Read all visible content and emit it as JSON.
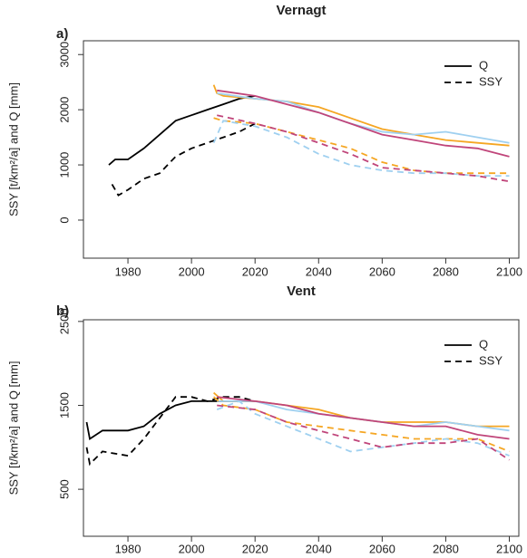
{
  "chart_data": [
    {
      "type": "line",
      "title": "Vernagt",
      "panel_label": "a)",
      "ylabel": "SSY [t/km²/a] and Q [mm]",
      "xlim": [
        1966,
        2103
      ],
      "ylim": [
        -690,
        3250
      ],
      "xticks": [
        1980,
        2000,
        2020,
        2040,
        2060,
        2080,
        2100
      ],
      "yticks": [
        0,
        1000,
        2000,
        3000
      ],
      "legend_position": "top-right",
      "legend": [
        {
          "label": "Q",
          "dash": "solid"
        },
        {
          "label": "SSY",
          "dash": "dashed"
        }
      ],
      "series": [
        {
          "color": "#000000",
          "dash": "solid",
          "x": [
            1974,
            1976,
            1980,
            1985,
            1990,
            1995,
            2000,
            2005,
            2010,
            2015,
            2020
          ],
          "values": [
            1000,
            1100,
            1100,
            1300,
            1550,
            1800,
            1900,
            2000,
            2100,
            2200,
            2250
          ]
        },
        {
          "color": "#000000",
          "dash": "dashed",
          "x": [
            1975,
            1977,
            1980,
            1985,
            1990,
            1995,
            2000,
            2005,
            2010,
            2015,
            2020
          ],
          "values": [
            650,
            450,
            550,
            750,
            850,
            1150,
            1300,
            1400,
            1500,
            1600,
            1750
          ]
        },
        {
          "color": "#f5a623",
          "dash": "solid",
          "x": [
            2007,
            2008,
            2010,
            2020,
            2030,
            2040,
            2050,
            2060,
            2070,
            2080,
            2090,
            2100
          ],
          "values": [
            2450,
            2300,
            2250,
            2200,
            2150,
            2050,
            1850,
            1650,
            1550,
            1450,
            1400,
            1350
          ]
        },
        {
          "color": "#9fd0f0",
          "dash": "solid",
          "x": [
            2008,
            2020,
            2030,
            2040,
            2050,
            2060,
            2070,
            2080,
            2090,
            2100
          ],
          "values": [
            2300,
            2200,
            2150,
            1950,
            1750,
            1600,
            1550,
            1600,
            1500,
            1400
          ]
        },
        {
          "color": "#c0457a",
          "dash": "solid",
          "x": [
            2008,
            2020,
            2030,
            2040,
            2050,
            2060,
            2070,
            2080,
            2090,
            2100
          ],
          "values": [
            2350,
            2250,
            2100,
            1950,
            1750,
            1550,
            1450,
            1350,
            1300,
            1150
          ]
        },
        {
          "color": "#f5a623",
          "dash": "dashed",
          "x": [
            2007,
            2010,
            2020,
            2030,
            2040,
            2050,
            2060,
            2070,
            2080,
            2090,
            2100
          ],
          "values": [
            1850,
            1800,
            1750,
            1600,
            1450,
            1300,
            1050,
            900,
            850,
            850,
            850
          ]
        },
        {
          "color": "#9fd0f0",
          "dash": "dashed",
          "x": [
            2007,
            2010,
            2020,
            2030,
            2040,
            2050,
            2060,
            2070,
            2080,
            2090,
            2100
          ],
          "values": [
            1400,
            1800,
            1700,
            1500,
            1200,
            1000,
            900,
            850,
            850,
            800,
            800
          ]
        },
        {
          "color": "#c0457a",
          "dash": "dashed",
          "x": [
            2008,
            2020,
            2030,
            2040,
            2050,
            2060,
            2070,
            2080,
            2090,
            2100
          ],
          "values": [
            1900,
            1750,
            1600,
            1400,
            1200,
            950,
            900,
            850,
            800,
            700
          ]
        }
      ]
    },
    {
      "type": "line",
      "title": "Vent",
      "panel_label": "b)",
      "ylabel": "SSY [t/km²/a] and Q [mm]",
      "xlim": [
        1966,
        2103
      ],
      "ylim": [
        -60,
        2520
      ],
      "xticks": [
        1980,
        2000,
        2020,
        2040,
        2060,
        2080,
        2100
      ],
      "yticks": [
        500,
        1500,
        2500
      ],
      "legend_position": "top-right",
      "legend": [
        {
          "label": "Q",
          "dash": "solid"
        },
        {
          "label": "SSY",
          "dash": "dashed"
        }
      ],
      "series": [
        {
          "color": "#000000",
          "dash": "solid",
          "x": [
            1967,
            1968,
            1972,
            1980,
            1985,
            1990,
            1995,
            2000,
            2005,
            2010,
            2015,
            2020
          ],
          "values": [
            1300,
            1100,
            1200,
            1200,
            1250,
            1400,
            1500,
            1550,
            1550,
            1550,
            1550,
            1550
          ]
        },
        {
          "color": "#000000",
          "dash": "dashed",
          "x": [
            1967,
            1968,
            1972,
            1980,
            1985,
            1990,
            1995,
            2000,
            2005,
            2010,
            2015,
            2020
          ],
          "values": [
            1000,
            800,
            950,
            900,
            1100,
            1350,
            1600,
            1600,
            1550,
            1600,
            1600,
            1550
          ]
        },
        {
          "color": "#f5a623",
          "dash": "solid",
          "x": [
            2007,
            2010,
            2020,
            2030,
            2040,
            2050,
            2060,
            2070,
            2080,
            2090,
            2100
          ],
          "values": [
            1650,
            1550,
            1550,
            1500,
            1450,
            1350,
            1300,
            1300,
            1300,
            1250,
            1250
          ]
        },
        {
          "color": "#9fd0f0",
          "dash": "solid",
          "x": [
            2008,
            2020,
            2030,
            2040,
            2050,
            2060,
            2070,
            2080,
            2090,
            2100
          ],
          "values": [
            1550,
            1550,
            1450,
            1400,
            1350,
            1300,
            1250,
            1300,
            1250,
            1200
          ]
        },
        {
          "color": "#c0457a",
          "dash": "solid",
          "x": [
            2008,
            2020,
            2030,
            2040,
            2050,
            2060,
            2070,
            2080,
            2090,
            2100
          ],
          "values": [
            1600,
            1550,
            1500,
            1400,
            1350,
            1300,
            1250,
            1250,
            1150,
            1100
          ]
        },
        {
          "color": "#f5a623",
          "dash": "dashed",
          "x": [
            2007,
            2010,
            2020,
            2030,
            2040,
            2050,
            2060,
            2070,
            2080,
            2090,
            2100
          ],
          "values": [
            1600,
            1500,
            1450,
            1300,
            1250,
            1200,
            1150,
            1100,
            1100,
            1100,
            950
          ]
        },
        {
          "color": "#9fd0f0",
          "dash": "dashed",
          "x": [
            2008,
            2015,
            2020,
            2030,
            2040,
            2050,
            2060,
            2070,
            2080,
            2090,
            2100
          ],
          "values": [
            1450,
            1550,
            1400,
            1250,
            1100,
            950,
            1000,
            1050,
            1100,
            1050,
            900
          ]
        },
        {
          "color": "#c0457a",
          "dash": "dashed",
          "x": [
            2008,
            2020,
            2030,
            2040,
            2050,
            2060,
            2070,
            2080,
            2090,
            2100
          ],
          "values": [
            1500,
            1450,
            1300,
            1200,
            1100,
            1000,
            1050,
            1050,
            1100,
            850
          ]
        }
      ]
    }
  ]
}
